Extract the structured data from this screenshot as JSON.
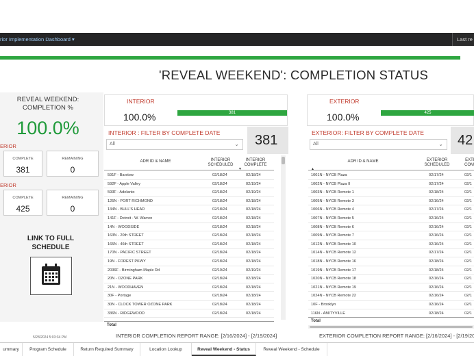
{
  "header": {
    "title": "rior Implementation Dashboard ▾",
    "last_refresh_label": "Last re"
  },
  "main_title": "'REVEAL WEEKEND': COMPLETION STATUS",
  "sidebar": {
    "heading": "REVEAL WEEKEND: COMPLETION %",
    "overall_pct": "100.0%",
    "interior_label": "ERIOR",
    "exterior_label": "ERIOR",
    "interior_complete_label": "COMPLETE",
    "interior_complete_value": "381",
    "interior_remaining_label": "REMAINING",
    "interior_remaining_value": "0",
    "exterior_complete_label": "COMPLETE",
    "exterior_complete_value": "425",
    "exterior_remaining_label": "REMAINING",
    "exterior_remaining_value": "0",
    "link_text": "LINK TO FULL SCHEDULE",
    "timestamp": "5/28/2024 5:03:34 PM"
  },
  "interior": {
    "kpi_name": "INTERIOR",
    "kpi_pct": "100.0%",
    "bar_value": "381",
    "filter_header": "INTERIOR : FILTER BY COMPLETE DATE",
    "dropdown_value": "All",
    "count": "381",
    "col_id": "ADR ID & NAME",
    "col_scheduled": "INTERIOR SCHEDULED",
    "col_complete": "INTERIOR COMPLETE",
    "total_label": "Total",
    "range": "INTERIOR COMPLETION REPORT RANGE: [2/16/2024] - [2/19/2024]",
    "rows": [
      [
        "591F - Barstow",
        "02/18/24",
        "02/18/24"
      ],
      [
        "592F - Apple Valley",
        "02/18/24",
        "02/19/24"
      ],
      [
        "593F - Adelanto",
        "02/18/24",
        "02/19/24"
      ],
      [
        "125N - PORT RICHMOND",
        "02/18/24",
        "02/18/24"
      ],
      [
        "134N - BULL'S HEAD",
        "02/18/24",
        "02/18/24"
      ],
      [
        "141F - Detroit - W. Warren",
        "02/18/24",
        "02/18/24"
      ],
      [
        "14N - WOODSIDE",
        "02/18/24",
        "02/18/24"
      ],
      [
        "163N - 20th STREET",
        "02/18/24",
        "02/18/24"
      ],
      [
        "165N - 46th STREET",
        "02/18/24",
        "02/18/24"
      ],
      [
        "170N - PACIFIC STREET",
        "02/18/24",
        "02/18/24"
      ],
      [
        "19N - FOREST PKWY",
        "02/18/24",
        "02/18/24"
      ],
      [
        "2036F - Birmingham Maple Rd",
        "02/19/24",
        "02/19/24"
      ],
      [
        "20N - OZONE PARK",
        "02/18/24",
        "02/18/24"
      ],
      [
        "21N - WOODHAVEN",
        "02/18/24",
        "02/18/24"
      ],
      [
        "30F - Portage",
        "02/18/24",
        "02/18/24"
      ],
      [
        "30N - CLOCK TOWER OZONE PARK",
        "02/18/24",
        "02/18/24"
      ],
      [
        "336N - RIDGEWOOD",
        "02/18/24",
        "02/18/24"
      ]
    ]
  },
  "exterior": {
    "kpi_name": "EXTERIOR",
    "kpi_pct": "100.0%",
    "bar_value": "425",
    "filter_header": "EXTERIOR: FILTER BY COMPLETE DATE",
    "dropdown_value": "All",
    "count": "42",
    "col_id": "ADR ID & NAME",
    "col_scheduled": "EXTERIOR SCHEDULED",
    "col_complete": "EXTE COMP",
    "total_label": "Total",
    "range": "EXTERIOR COMPLETION REPORT RANGE: [2/16/2024] - [2/19/202",
    "rows": [
      [
        "1001N - NYCB Plaza",
        "02/17/24",
        "02/1"
      ],
      [
        "1002N - NYCB Plaza II",
        "02/17/24",
        "02/1"
      ],
      [
        "1003N - NYCB Remote 1",
        "02/18/24",
        "02/1"
      ],
      [
        "1005N - NYCB Remote 3",
        "02/16/24",
        "02/1"
      ],
      [
        "1006N - NYCB Remote 4",
        "02/17/24",
        "02/1"
      ],
      [
        "1007N - NYCB Remote 5",
        "02/16/24",
        "02/1"
      ],
      [
        "1008N - NYCB Remote 6",
        "02/16/24",
        "02/1"
      ],
      [
        "1009N - NYCB Remote 7",
        "02/16/24",
        "02/1"
      ],
      [
        "1012N - NYCB Remote 10",
        "02/16/24",
        "02/1"
      ],
      [
        "1014N - NYCB Remote 12",
        "02/17/24",
        "02/1"
      ],
      [
        "1018N - NYCB Remote 16",
        "02/18/24",
        "02/1"
      ],
      [
        "1019N - NYCB Remote 17",
        "02/18/24",
        "02/1"
      ],
      [
        "1020N - NYCB Remote 18",
        "02/16/24",
        "02/1"
      ],
      [
        "1021N - NYCB Remote 19",
        "02/16/24",
        "02/1"
      ],
      [
        "1024N - NYCB Remote 22",
        "02/16/24",
        "02/1"
      ],
      [
        "10F - Brooklyn",
        "02/16/24",
        "02/1"
      ],
      [
        "116N - AMITYVILLE",
        "02/18/24",
        "02/1"
      ]
    ]
  },
  "tabs": [
    {
      "label": "ummary",
      "active": false
    },
    {
      "label": "Program Schedule",
      "active": false
    },
    {
      "label": "Return Required Summary",
      "active": false
    },
    {
      "label": "Location Lookup",
      "active": false
    },
    {
      "label": "Reveal Weekend - Status",
      "active": true
    },
    {
      "label": "Reveal Weekend - Schedule",
      "active": false
    }
  ]
}
